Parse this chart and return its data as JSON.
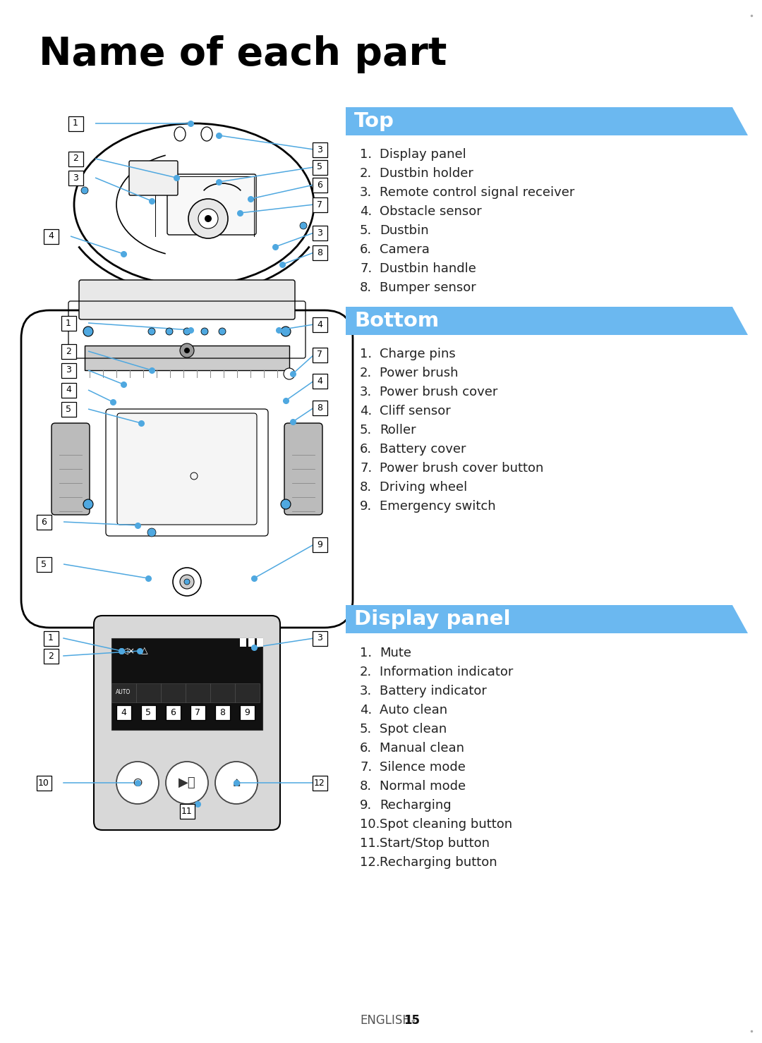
{
  "title": "Name of each part",
  "bg_color": "#ffffff",
  "title_color": "#000000",
  "title_fontsize": 40,
  "header_bg_color": "#6bb8f0",
  "header_text_color": "#ffffff",
  "body_text_color": "#222222",
  "line_color": "#4fa8e0",
  "dot_color": "#4fa8e0",
  "section1_header": "Top",
  "section1_items": [
    "Display panel",
    "Dustbin holder",
    "Remote control signal receiver",
    "Obstacle sensor",
    "Dustbin",
    "Camera",
    "Dustbin handle",
    "Bumper sensor"
  ],
  "section2_header": "Bottom",
  "section2_items": [
    "Charge pins",
    "Power brush",
    "Power brush cover",
    "Cliff sensor",
    "Roller",
    "Battery cover",
    "Power brush cover button",
    "Driving wheel",
    "Emergency switch"
  ],
  "section3_header": "Display panel",
  "section3_items": [
    "Mute",
    "Information indicator",
    "Battery indicator",
    "Auto clean",
    "Spot clean",
    "Manual clean",
    "Silence mode",
    "Normal mode",
    "Recharging",
    "Spot cleaning button",
    "Start/Stop button",
    "Recharging button"
  ],
  "footer": "ENGLISH-",
  "footer_bold": "15"
}
